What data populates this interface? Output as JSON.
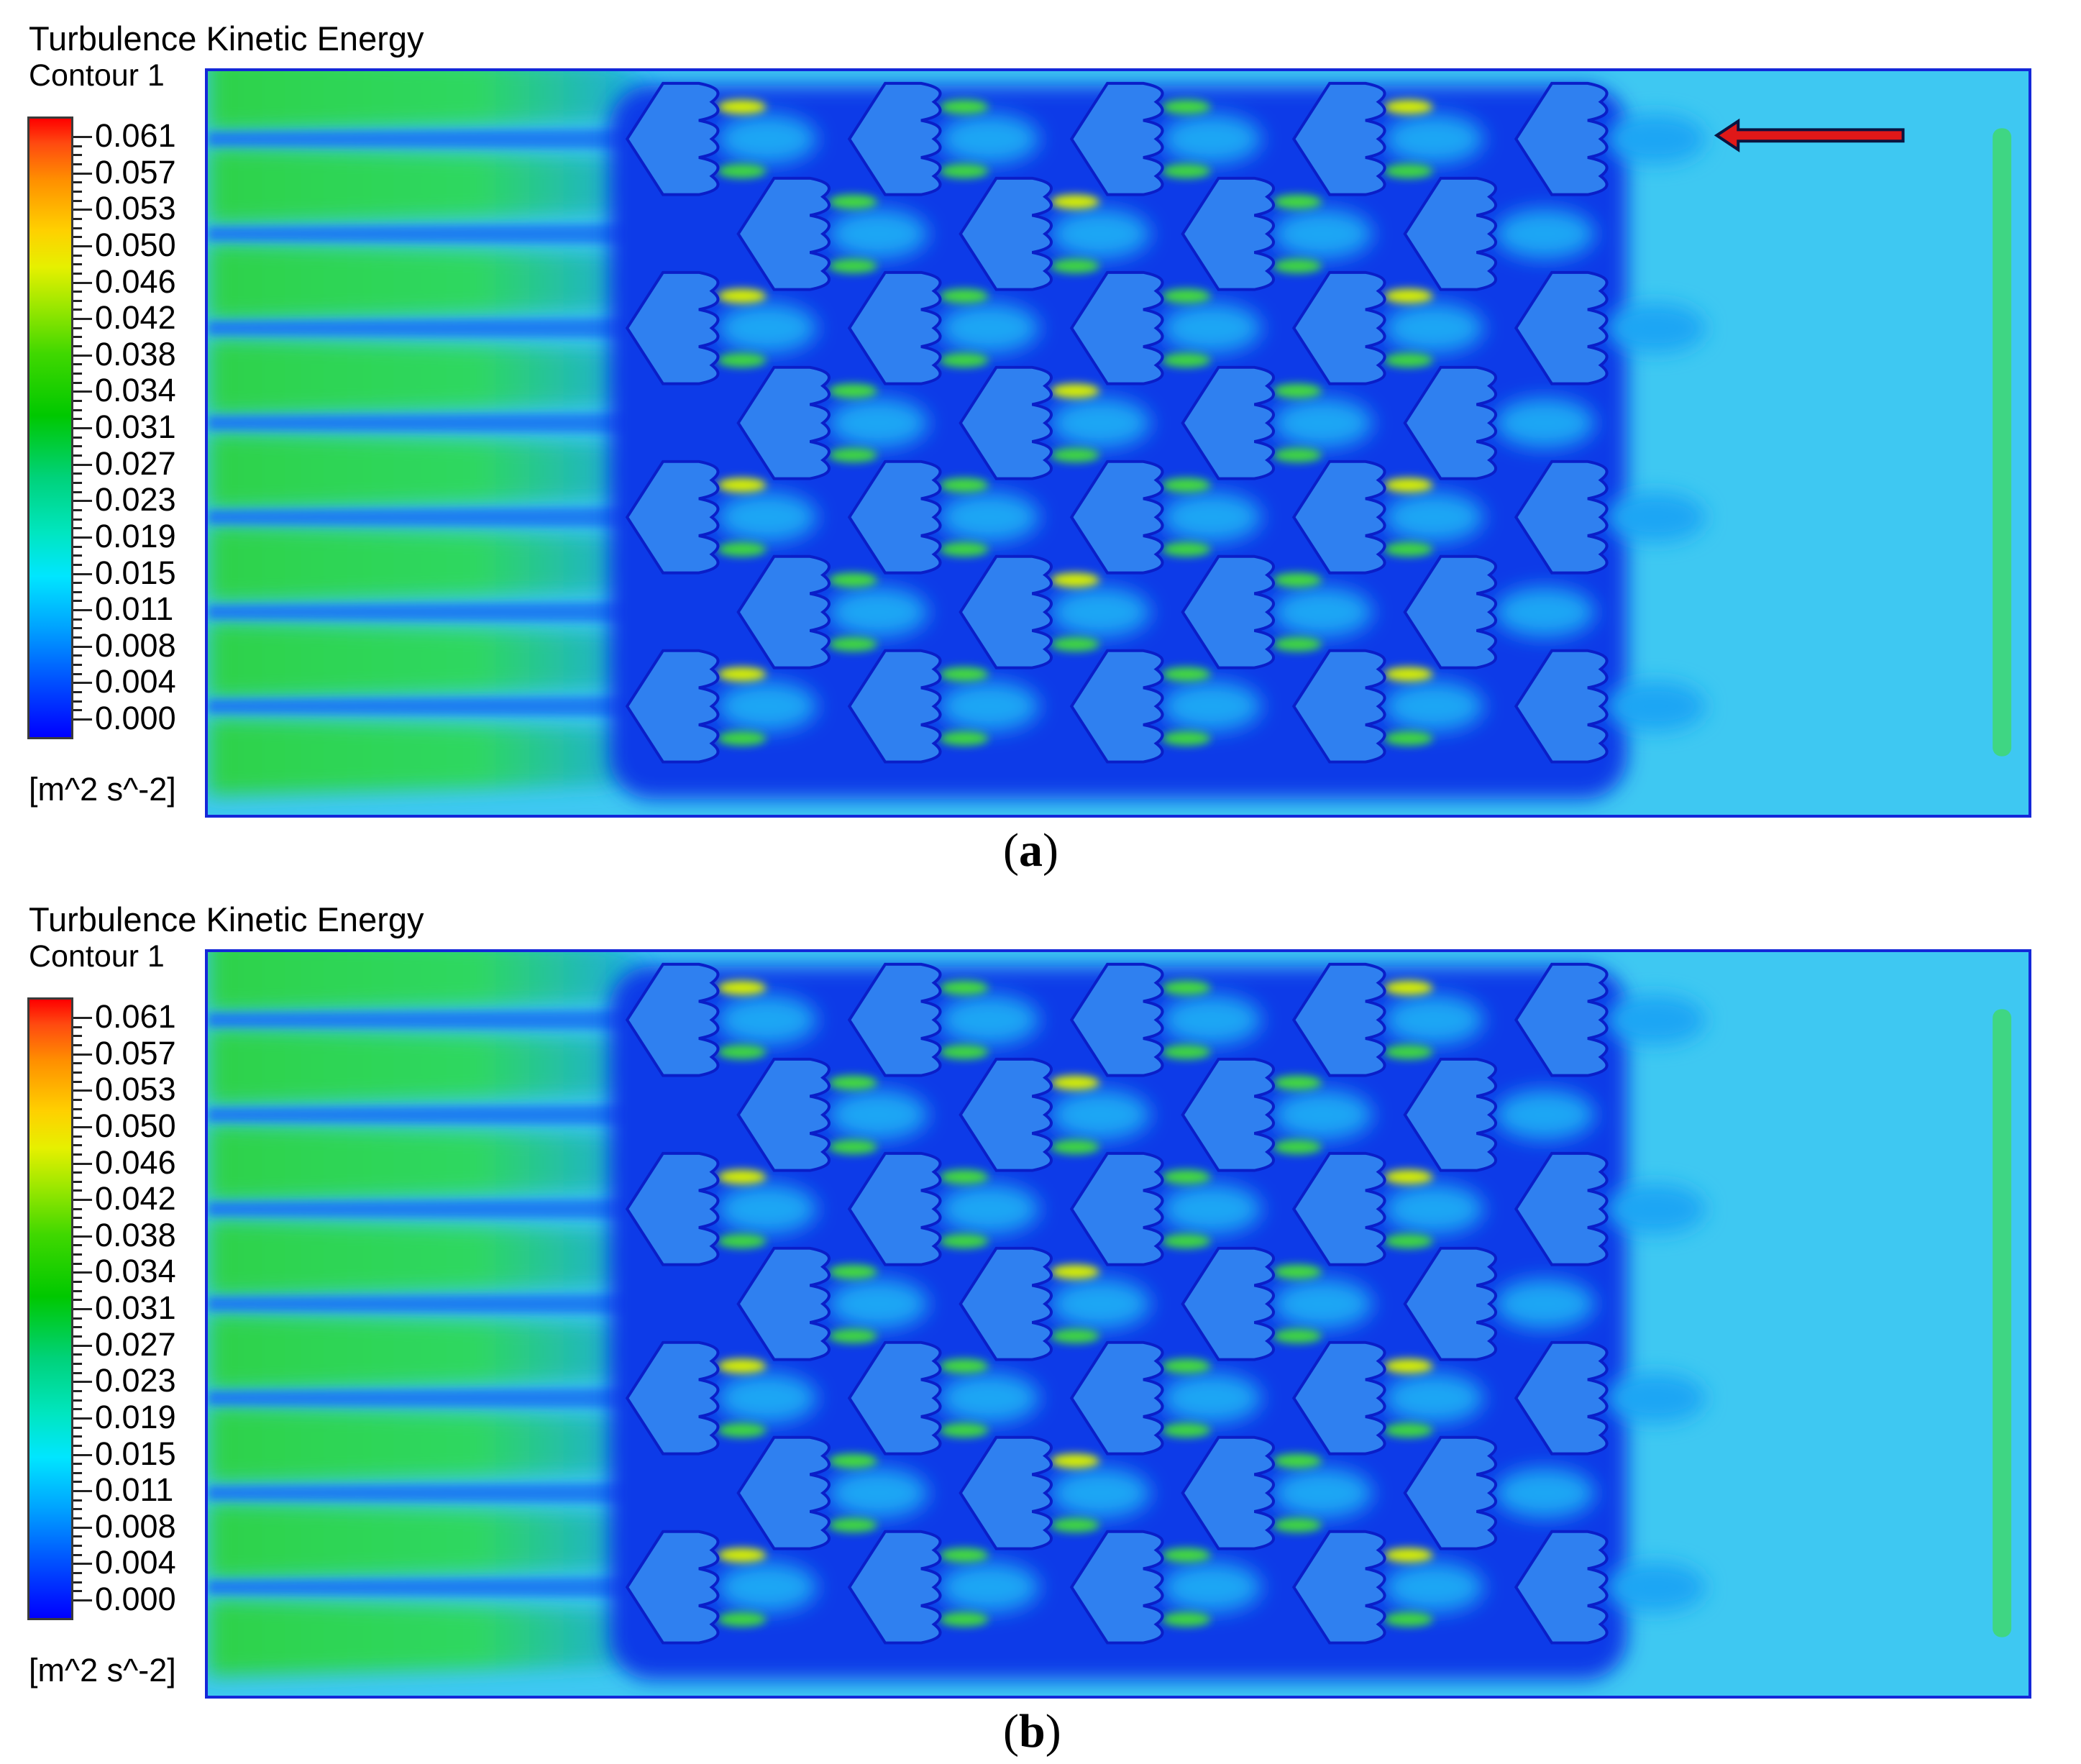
{
  "figure": {
    "colorbar_labels": [
      "0.061",
      "0.057",
      "0.053",
      "0.050",
      "0.046",
      "0.042",
      "0.038",
      "0.034",
      "0.031",
      "0.027",
      "0.023",
      "0.019",
      "0.015",
      "0.011",
      "0.008",
      "0.004",
      "0.000"
    ],
    "colorbar_colors": [
      "#0000ff",
      "#00a5ff",
      "#00e6ff",
      "#00c800",
      "#e6f000",
      "#ff9000",
      "#ff0000"
    ],
    "units": "[m^2 s^-2]",
    "flow_arrow": "arrow-left-icon",
    "arrow_color": "#e01818"
  },
  "panels": [
    {
      "id": "a",
      "title": "Turbulence Kinetic Energy",
      "subtitle": "Contour 1",
      "caption_open": "(",
      "caption_letter": "a",
      "caption_close": ")",
      "has_flow_arrow": true
    },
    {
      "id": "b",
      "title": "Turbulence Kinetic Energy",
      "subtitle": "Contour 1",
      "caption_open": "(",
      "caption_letter": "b",
      "caption_close": ")",
      "has_flow_arrow": false
    }
  ]
}
